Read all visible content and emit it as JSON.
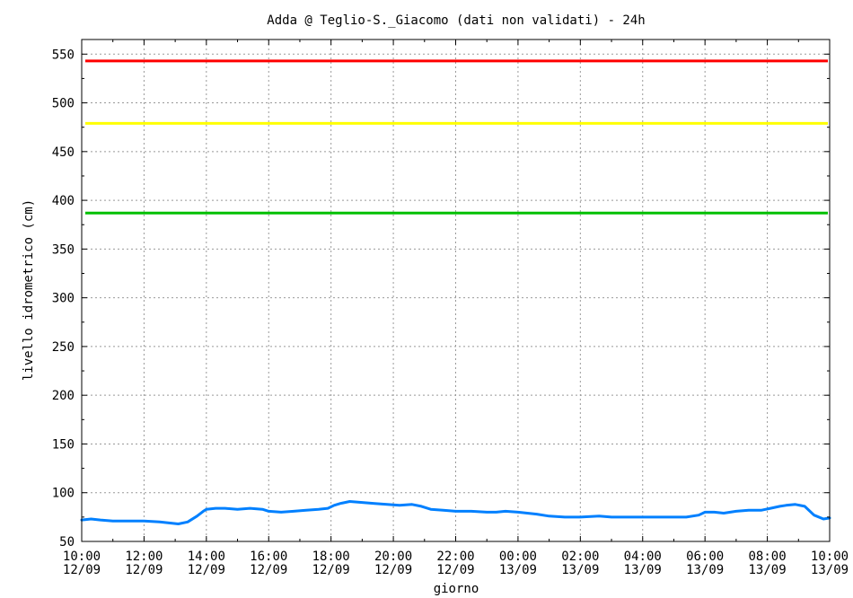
{
  "chart_data": {
    "type": "line",
    "title": "Adda @ Teglio-S._Giacomo (dati non validati) - 24h",
    "xlabel": "giorno",
    "ylabel": "livello idrometrico (cm)",
    "ylim": [
      50,
      565
    ],
    "yticks": [
      50,
      100,
      150,
      200,
      250,
      300,
      350,
      400,
      450,
      500,
      550
    ],
    "xlim": [
      0,
      24
    ],
    "xtick_positions": [
      0,
      2,
      4,
      6,
      8,
      10,
      12,
      14,
      16,
      18,
      20,
      22,
      24
    ],
    "xtick_labels": [
      [
        "10:00",
        "12/09"
      ],
      [
        "12:00",
        "12/09"
      ],
      [
        "14:00",
        "12/09"
      ],
      [
        "16:00",
        "12/09"
      ],
      [
        "18:00",
        "12/09"
      ],
      [
        "20:00",
        "12/09"
      ],
      [
        "22:00",
        "12/09"
      ],
      [
        "00:00",
        "13/09"
      ],
      [
        "02:00",
        "13/09"
      ],
      [
        "04:00",
        "13/09"
      ],
      [
        "06:00",
        "13/09"
      ],
      [
        "08:00",
        "13/09"
      ],
      [
        "10:00",
        "13/09"
      ]
    ],
    "grid": true,
    "thresholds": [
      {
        "value": 543,
        "color": "#ff0000"
      },
      {
        "value": 479,
        "color": "#ffff00"
      },
      {
        "value": 387,
        "color": "#00c000"
      }
    ],
    "series": [
      {
        "color": "#0080ff",
        "x": [
          0,
          0.3,
          0.6,
          1.0,
          1.5,
          2.0,
          2.5,
          2.8,
          3.1,
          3.4,
          3.7,
          3.9,
          4.0,
          4.3,
          4.6,
          5.0,
          5.4,
          5.8,
          6.0,
          6.4,
          6.8,
          7.2,
          7.6,
          7.9,
          8.1,
          8.3,
          8.6,
          9.0,
          9.4,
          9.8,
          10.2,
          10.6,
          10.9,
          11.2,
          11.6,
          12.0,
          12.5,
          13.0,
          13.3,
          13.6,
          14.0,
          14.6,
          15.0,
          15.5,
          16.0,
          16.6,
          17.0,
          17.5,
          18.0,
          18.4,
          18.7,
          19.0,
          19.4,
          19.8,
          20.0,
          20.3,
          20.6,
          21.0,
          21.4,
          21.8,
          22.1,
          22.4,
          22.6,
          22.9,
          23.2,
          23.5,
          23.8,
          24.0
        ],
        "values": [
          72,
          73,
          72,
          71,
          71,
          71,
          70,
          69,
          68,
          70,
          76,
          81,
          83,
          84,
          84,
          83,
          84,
          83,
          81,
          80,
          81,
          82,
          83,
          84,
          87,
          89,
          91,
          90,
          89,
          88,
          87,
          88,
          86,
          83,
          82,
          81,
          81,
          80,
          80,
          81,
          80,
          78,
          76,
          75,
          75,
          76,
          75,
          75,
          75,
          75,
          75,
          75,
          75,
          77,
          80,
          80,
          79,
          81,
          82,
          82,
          84,
          86,
          87,
          88,
          86,
          77,
          73,
          74
        ]
      }
    ]
  }
}
